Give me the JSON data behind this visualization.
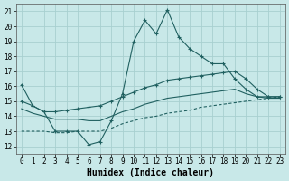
{
  "xlabel": "Humidex (Indice chaleur)",
  "xlim": [
    -0.5,
    23.5
  ],
  "ylim": [
    11.5,
    21.5
  ],
  "yticks": [
    12,
    13,
    14,
    15,
    16,
    17,
    18,
    19,
    20,
    21
  ],
  "xticks": [
    0,
    1,
    2,
    3,
    4,
    5,
    6,
    7,
    8,
    9,
    10,
    11,
    12,
    13,
    14,
    15,
    16,
    17,
    18,
    19,
    20,
    21,
    22,
    23
  ],
  "bg_color": "#c8e8e8",
  "grid_color": "#a8d0d0",
  "line_color": "#206060",
  "line1_x": [
    0,
    1,
    2,
    3,
    4,
    5,
    6,
    7,
    8,
    9,
    10,
    11,
    12,
    13,
    14,
    15,
    16,
    17,
    18,
    19,
    20,
    21,
    22,
    23
  ],
  "line1_y": [
    16.1,
    14.7,
    14.3,
    13.0,
    13.0,
    13.0,
    12.1,
    12.3,
    13.7,
    15.5,
    19.0,
    20.4,
    19.5,
    21.1,
    19.3,
    18.5,
    18.0,
    17.5,
    17.5,
    16.5,
    15.8,
    15.3,
    15.3,
    15.3
  ],
  "line2_x": [
    0,
    1,
    2,
    3,
    4,
    5,
    6,
    7,
    8,
    9,
    10,
    11,
    12,
    13,
    14,
    15,
    16,
    17,
    18,
    19,
    20,
    21,
    22,
    23
  ],
  "line2_y": [
    15.0,
    14.7,
    14.3,
    14.3,
    14.4,
    14.5,
    14.6,
    14.7,
    15.0,
    15.3,
    15.6,
    15.9,
    16.1,
    16.4,
    16.5,
    16.6,
    16.7,
    16.8,
    16.9,
    17.0,
    16.5,
    15.8,
    15.3,
    15.3
  ],
  "line3_x": [
    0,
    1,
    2,
    3,
    4,
    5,
    6,
    7,
    8,
    9,
    10,
    11,
    12,
    13,
    14,
    15,
    16,
    17,
    18,
    19,
    20,
    21,
    22,
    23
  ],
  "line3_y": [
    14.5,
    14.2,
    14.0,
    13.8,
    13.8,
    13.8,
    13.7,
    13.7,
    14.0,
    14.3,
    14.5,
    14.8,
    15.0,
    15.2,
    15.3,
    15.4,
    15.5,
    15.6,
    15.7,
    15.8,
    15.5,
    15.3,
    15.2,
    15.2
  ],
  "line4_x": [
    0,
    1,
    2,
    3,
    4,
    5,
    6,
    7,
    8,
    9,
    10,
    11,
    12,
    13,
    14,
    15,
    16,
    17,
    18,
    19,
    20,
    21,
    22,
    23
  ],
  "line4_y": [
    13.0,
    13.0,
    13.0,
    12.9,
    12.9,
    13.0,
    13.0,
    13.0,
    13.2,
    13.5,
    13.7,
    13.9,
    14.0,
    14.2,
    14.3,
    14.4,
    14.6,
    14.7,
    14.8,
    14.9,
    15.0,
    15.1,
    15.2,
    15.3
  ],
  "font_family": "monospace",
  "tick_fontsize": 5.5,
  "xlabel_fontsize": 7.0
}
